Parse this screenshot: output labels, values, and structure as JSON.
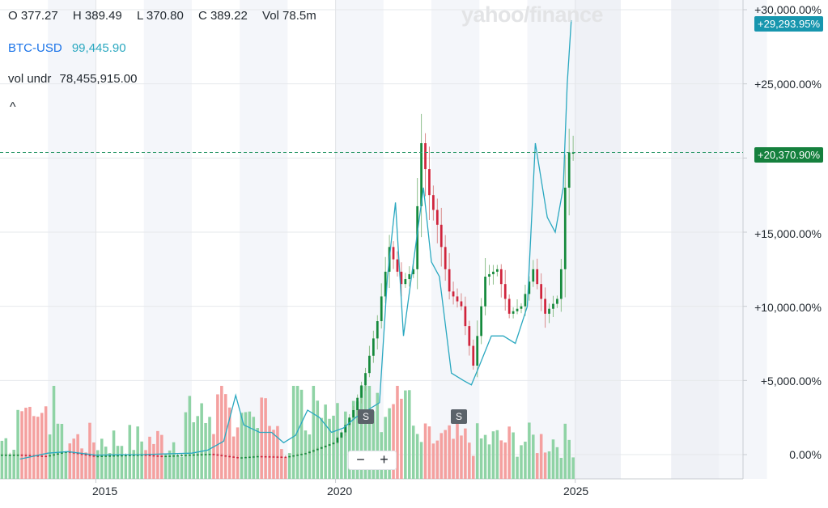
{
  "ohlc": {
    "open": "O 377.27",
    "high": "H 389.49",
    "low": "L 370.80",
    "close": "C 389.22",
    "volume": "Vol 78.5m"
  },
  "comparison": {
    "symbol": "BTC-USD",
    "value": "99,445.90",
    "color": "#2aa8c0"
  },
  "volume_underlay": {
    "label": "vol undr",
    "value": "78,455,915.00"
  },
  "collapse_glyph": "^",
  "watermark": "yahoo/finance",
  "y_axis": {
    "ticks": [
      "+30,000.00%",
      "+25,000.00%",
      "+20,000.00%",
      "+15,000.00%",
      "+10,000.00%",
      "+5,000.00%",
      "0.00%"
    ],
    "badge_comparison": "+29,293.95%",
    "badge_last": "+20,370.90%"
  },
  "x_axis": {
    "ticks": [
      "2015",
      "2020",
      "2025"
    ]
  },
  "split_markers": [
    "S",
    "S"
  ],
  "zoom": {
    "minus": "−",
    "plus": "+"
  },
  "colors": {
    "up": "#158a3c",
    "down": "#d0243c",
    "vol_up": "#8fd3a5",
    "vol_down": "#f4a09f",
    "comparison_line": "#2aa8c0",
    "badge_teal": "#1796ae",
    "badge_green": "#15803d"
  },
  "chart_data": {
    "type": "line",
    "y_unit": "percent change",
    "ylim": [
      -500,
      30500
    ],
    "xlim": [
      "2013-01",
      "2028-06"
    ],
    "series": [
      {
        "name": "BTC-USD",
        "x": [
          "2013-06",
          "2014-01",
          "2014-06",
          "2015-01",
          "2015-06",
          "2016-01",
          "2016-06",
          "2017-01",
          "2017-05",
          "2017-09",
          "2017-12",
          "2018-02",
          "2018-06",
          "2018-09",
          "2018-12",
          "2019-03",
          "2019-06",
          "2019-09",
          "2019-12",
          "2020-03",
          "2020-06",
          "2020-09",
          "2020-12",
          "2021-02",
          "2021-04",
          "2021-06",
          "2021-08",
          "2021-11",
          "2022-01",
          "2022-03",
          "2022-06",
          "2022-09",
          "2022-11",
          "2023-01",
          "2023-04",
          "2023-07",
          "2023-10",
          "2024-01",
          "2024-03",
          "2024-06",
          "2024-08",
          "2024-10",
          "2024-11",
          "2024-12"
        ],
        "y": [
          -300,
          100,
          200,
          -40,
          -10,
          0,
          50,
          100,
          300,
          900,
          4000,
          2000,
          1500,
          1500,
          800,
          1300,
          3000,
          2500,
          1500,
          1800,
          2500,
          3000,
          3500,
          12000,
          17000,
          8000,
          12000,
          18000,
          13000,
          12000,
          5500,
          5000,
          4700,
          6000,
          8000,
          8000,
          7500,
          10000,
          21000,
          16000,
          15000,
          18000,
          25000,
          29294
        ]
      },
      {
        "name": "price",
        "x": [
          "2013-06",
          "2014-01",
          "2014-06",
          "2015-01",
          "2015-06",
          "2016-01",
          "2016-06",
          "2017-01",
          "2017-06",
          "2018-01",
          "2018-06",
          "2019-01",
          "2019-06",
          "2020-01",
          "2020-03",
          "2020-06",
          "2020-09",
          "2020-12",
          "2021-03",
          "2021-06",
          "2021-09",
          "2021-11",
          "2022-01",
          "2022-03",
          "2022-06",
          "2022-09",
          "2022-12",
          "2023-03",
          "2023-06",
          "2023-09",
          "2023-12",
          "2024-03",
          "2024-06",
          "2024-09",
          "2024-10",
          "2024-11",
          "2024-12"
        ],
        "y": [
          0,
          -100,
          200,
          -100,
          -50,
          0,
          -100,
          0,
          50,
          -200,
          -100,
          -150,
          100,
          800,
          1500,
          3000,
          5500,
          9000,
          14000,
          11500,
          12500,
          21000,
          17500,
          15500,
          11000,
          10000,
          6000,
          12000,
          12500,
          9500,
          10000,
          12500,
          9500,
          10500,
          12500,
          18000,
          20371
        ]
      }
    ]
  }
}
